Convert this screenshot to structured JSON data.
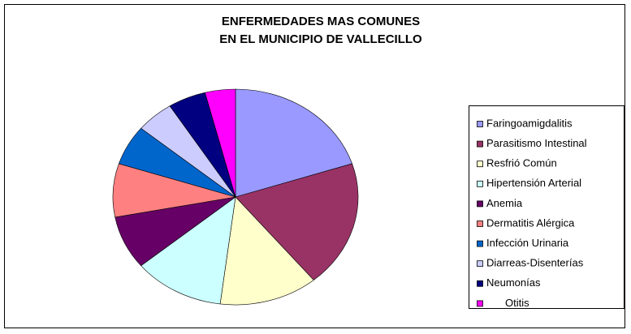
{
  "chart_data": {
    "type": "pie",
    "title": [
      "ENFERMEDADES MAS COMUNES",
      "EN EL MUNICIPIO DE VALLECILLO"
    ],
    "categories": [
      "Faringoamigdalitis",
      "Parasitismo Intestinal",
      "Resfrió Común",
      "Hipertensión Arterial",
      "Anemia",
      "Dermatitis Alérgica",
      "Infección Urinaria",
      "Diarreas-Disenterías",
      "Neumonías",
      "Otitis"
    ],
    "values": [
      20,
      19,
      13,
      12,
      8,
      8,
      6,
      5,
      5,
      4
    ],
    "colors": [
      "#9999ff",
      "#993366",
      "#ffffcc",
      "#ccffff",
      "#660066",
      "#ff8080",
      "#0066cc",
      "#ccccff",
      "#000080",
      "#ff00ff"
    ],
    "legend": "right"
  }
}
